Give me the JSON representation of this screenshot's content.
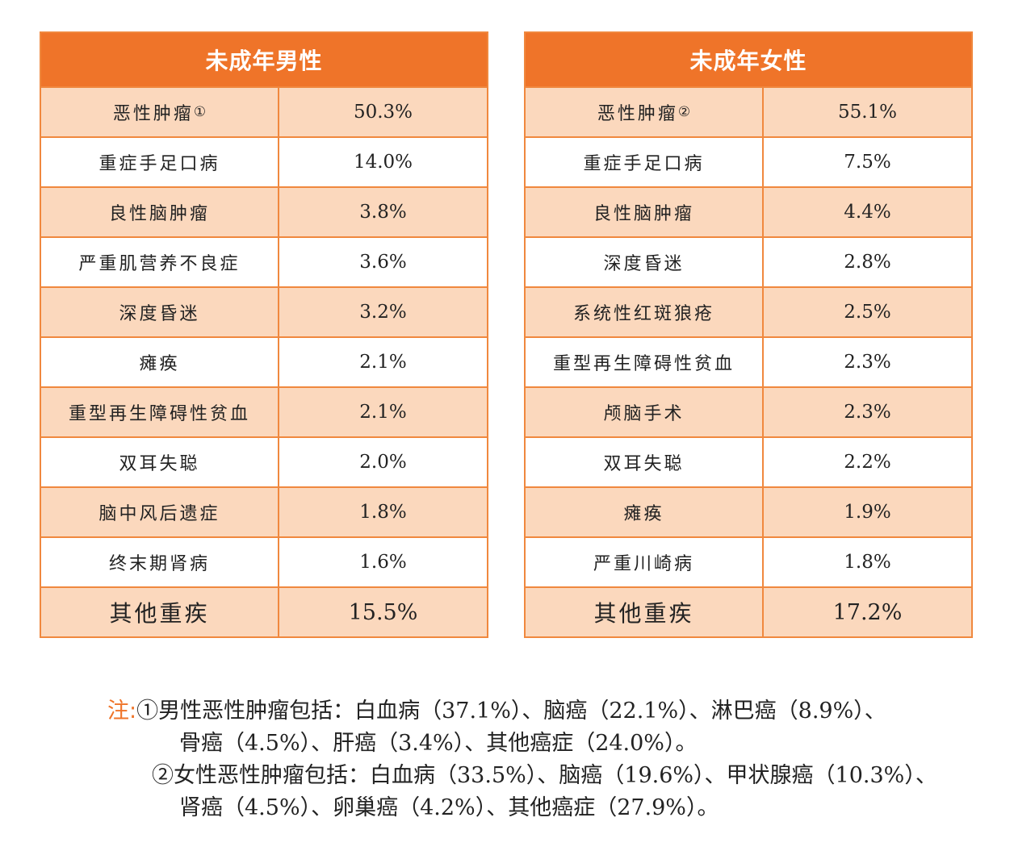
{
  "tables": [
    {
      "title": "未成年男性",
      "rows": [
        {
          "name": "恶性肿瘤",
          "mark": "①",
          "value": "50.3%"
        },
        {
          "name": "重症手足口病",
          "value": "14.0%"
        },
        {
          "name": "良性脑肿瘤",
          "value": "3.8%"
        },
        {
          "name": "严重肌营养不良症",
          "value": "3.6%"
        },
        {
          "name": "深度昏迷",
          "value": "3.2%"
        },
        {
          "name": "瘫痪",
          "value": "2.1%"
        },
        {
          "name": "重型再生障碍性贫血",
          "value": "2.1%"
        },
        {
          "name": "双耳失聪",
          "value": "2.0%"
        },
        {
          "name": "脑中风后遗症",
          "value": "1.8%"
        },
        {
          "name": "终末期肾病",
          "value": "1.6%"
        },
        {
          "name": "其他重疾",
          "value": "15.5%"
        }
      ]
    },
    {
      "title": "未成年女性",
      "rows": [
        {
          "name": "恶性肿瘤",
          "mark": "②",
          "value": "55.1%"
        },
        {
          "name": "重症手足口病",
          "value": "7.5%"
        },
        {
          "name": "良性脑肿瘤",
          "value": "4.4%"
        },
        {
          "name": "深度昏迷",
          "value": "2.8%"
        },
        {
          "name": "系统性红斑狼疮",
          "value": "2.5%"
        },
        {
          "name": "重型再生障碍性贫血",
          "value": "2.3%"
        },
        {
          "name": "颅脑手术",
          "value": "2.3%"
        },
        {
          "name": "双耳失聪",
          "value": "2.2%"
        },
        {
          "name": "瘫痪",
          "value": "1.9%"
        },
        {
          "name": "严重川崎病",
          "value": "1.8%"
        },
        {
          "name": "其他重疾",
          "value": "17.2%"
        }
      ]
    }
  ],
  "notes": {
    "label": "注:",
    "lines": [
      "①男性恶性肿瘤包括：白血病（37.1%）、脑癌（22.1%）、淋巴癌（8.9%）、",
      "骨癌（4.5%）、肝癌（3.4%）、其他癌症（24.0%）。",
      "②女性恶性肿瘤包括：白血病（33.5%）、脑癌（19.6%）、甲状腺癌（10.3%）、",
      "肾癌（4.5%）、卵巢癌（4.2%）、其他癌症（27.9%）。"
    ]
  }
}
